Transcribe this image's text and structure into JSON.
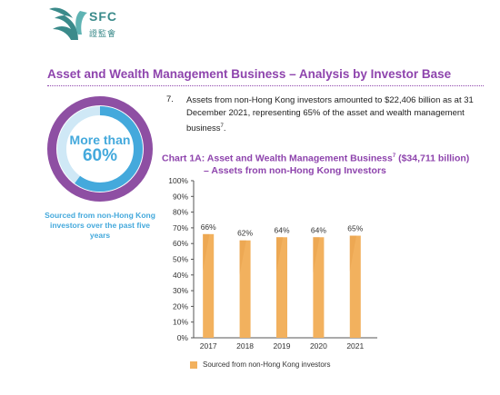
{
  "logo": {
    "name": "SFC",
    "chinese": "證監會"
  },
  "section_title": "Asset and Wealth Management Business – Analysis by Investor Base",
  "donut": {
    "line1": "More than",
    "line2": "60%",
    "fraction": 0.6,
    "caption": "Sourced from non-Hong Kong investors over the past five years",
    "colors": {
      "outer": "#8e4fa3",
      "inner": "#44a9dc"
    }
  },
  "paragraph": {
    "number": "7.",
    "text": "Assets from non-Hong Kong investors amounted to $22,406 billion as at 31 December 2021, representing 65% of the asset and wealth management business",
    "footnote": "7",
    "end": "."
  },
  "chart_title": {
    "line1_a": "Chart 1A: Asset and Wealth Management Business",
    "line1_sup": "7",
    "line1_b": " ($34,711 billion)",
    "line2": "– Assets from non-Hong Kong Investors"
  },
  "chart_data": {
    "type": "bar",
    "categories": [
      "2017",
      "2018",
      "2019",
      "2020",
      "2021"
    ],
    "series": [
      {
        "name": "Sourced from non-Hong Kong investors",
        "values": [
          66,
          62,
          64,
          64,
          65
        ]
      }
    ],
    "data_labels": [
      "66%",
      "62%",
      "64%",
      "64%",
      "65%"
    ],
    "ylim": [
      0,
      100
    ],
    "yticks": [
      "0%",
      "10%",
      "20%",
      "30%",
      "40%",
      "50%",
      "60%",
      "70%",
      "80%",
      "90%",
      "100%"
    ],
    "grid": false,
    "legend_position": "bottom-left",
    "bar_color": "#f2b15e",
    "bar_shade_color": "#e9a24c"
  },
  "legend": {
    "label": "Sourced from non-Hong Kong investors"
  }
}
